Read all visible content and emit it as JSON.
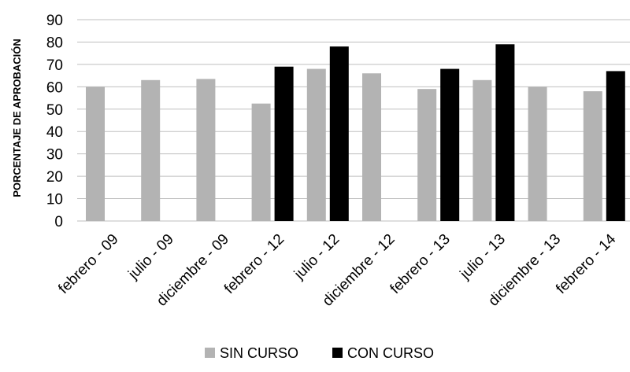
{
  "chart_data": {
    "type": "bar",
    "title": "",
    "xlabel": "",
    "ylabel": "PORCENTAJE DE APROBACIÓN",
    "ylim": [
      0,
      90
    ],
    "yticks": [
      0,
      10,
      20,
      30,
      40,
      50,
      60,
      70,
      80,
      90
    ],
    "grid": true,
    "legend_position": "bottom",
    "categories": [
      "febrero - 09",
      "julio - 09",
      "diciembre - 09",
      "febrero - 12",
      "julio - 12",
      "diciembre - 12",
      "febrero - 13",
      "julio - 13",
      "diciembre - 13",
      "febrero - 14"
    ],
    "series": [
      {
        "name": "SIN CURSO",
        "color": "#b3b3b3",
        "values": [
          60,
          63,
          63.5,
          52.5,
          68,
          66,
          59,
          63,
          60,
          58
        ]
      },
      {
        "name": "CON CURSO",
        "color": "#000000",
        "values": [
          null,
          null,
          null,
          69,
          78,
          null,
          68,
          79,
          null,
          67
        ]
      }
    ]
  }
}
